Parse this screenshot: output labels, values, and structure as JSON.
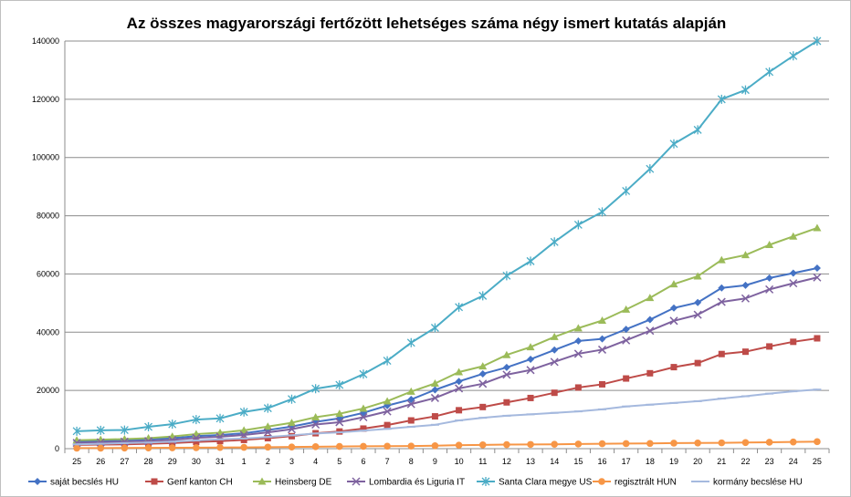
{
  "chart_data": {
    "type": "line",
    "title": "Az összes magyarországi fertőzött lehetséges száma négy ismert kutatás alapján",
    "xlabel": "",
    "ylabel": "",
    "ylim": [
      0,
      140000
    ],
    "yticks": [
      0,
      20000,
      40000,
      60000,
      80000,
      100000,
      120000,
      140000
    ],
    "grid": "horizontal",
    "legend_position": "bottom",
    "categories": [
      "25",
      "26",
      "27",
      "28",
      "29",
      "30",
      "31",
      "1",
      "2",
      "3",
      "4",
      "5",
      "6",
      "7",
      "8",
      "9",
      "10",
      "11",
      "12",
      "13",
      "14",
      "15",
      "16",
      "17",
      "18",
      "19",
      "20",
      "21",
      "22",
      "23",
      "24",
      "25"
    ],
    "series": [
      {
        "name": "saját becslés HU",
        "color": "#4472c4",
        "marker": "diamond",
        "values": [
          2500,
          2700,
          2900,
          3200,
          3600,
          4300,
          4700,
          5300,
          6400,
          7600,
          9200,
          10400,
          12300,
          14800,
          16900,
          20200,
          23100,
          25700,
          27900,
          30700,
          33900,
          37000,
          37700,
          41000,
          44300,
          48300,
          50200,
          55200,
          56100,
          58600,
          60300,
          62000
        ]
      },
      {
        "name": "Genf kanton CH",
        "color": "#be4b48",
        "marker": "square",
        "values": [
          1300,
          1400,
          1500,
          1700,
          1900,
          2300,
          2600,
          3000,
          3600,
          4300,
          5300,
          5900,
          6900,
          8100,
          9700,
          11100,
          13200,
          14300,
          15900,
          17400,
          19200,
          21000,
          22100,
          24100,
          25900,
          28000,
          29400,
          32500,
          33300,
          35100,
          36700,
          37900
        ]
      },
      {
        "name": "Heinsberg  DE",
        "color": "#9bbb59",
        "marker": "triangle",
        "values": [
          2900,
          3100,
          3300,
          3600,
          4200,
          5000,
          5500,
          6300,
          7600,
          8900,
          10800,
          12000,
          13800,
          16300,
          19600,
          22400,
          26300,
          28300,
          32200,
          34900,
          38400,
          41400,
          44000,
          47800,
          51800,
          56500,
          59200,
          64800,
          66500,
          70000,
          72900,
          75800
        ]
      },
      {
        "name": "Lombardia és Liguria  IT",
        "color": "#7e629f",
        "marker": "x",
        "values": [
          2000,
          2200,
          2400,
          2600,
          3000,
          3700,
          4100,
          4700,
          5600,
          6700,
          8300,
          9100,
          10800,
          12800,
          15300,
          17400,
          20700,
          22300,
          25400,
          27000,
          29800,
          32600,
          34000,
          37200,
          40500,
          43900,
          46000,
          50400,
          51600,
          54700,
          56800,
          58800
        ]
      },
      {
        "name": "Santa Clara megye US",
        "color": "#4bacc6",
        "marker": "star",
        "values": [
          6000,
          6300,
          6400,
          7500,
          8400,
          10000,
          10400,
          12600,
          13900,
          17000,
          20600,
          21900,
          25600,
          30200,
          36400,
          41500,
          48600,
          52500,
          59400,
          64400,
          71000,
          76900,
          81300,
          88500,
          96100,
          104700,
          109500,
          120000,
          123200,
          129400,
          134900,
          140000
        ]
      },
      {
        "name": "regisztrált HUN",
        "color": "#f79646",
        "marker": "circle",
        "values": [
          180,
          190,
          230,
          260,
          300,
          340,
          410,
          450,
          520,
          580,
          680,
          750,
          810,
          860,
          900,
          1000,
          1200,
          1300,
          1400,
          1450,
          1500,
          1600,
          1700,
          1750,
          1800,
          1900,
          1950,
          2000,
          2100,
          2200,
          2300,
          2400
        ]
      },
      {
        "name": "kormány becslése HU",
        "color": "#a5b9de",
        "marker": "dash",
        "values": [
          1500,
          1700,
          1900,
          2100,
          2400,
          2800,
          3200,
          3500,
          4000,
          4600,
          5200,
          5600,
          6200,
          6800,
          7500,
          8200,
          9700,
          10600,
          11300,
          11800,
          12300,
          12800,
          13500,
          14500,
          15100,
          15700,
          16300,
          17200,
          18000,
          18900,
          19700,
          20300
        ]
      }
    ]
  }
}
